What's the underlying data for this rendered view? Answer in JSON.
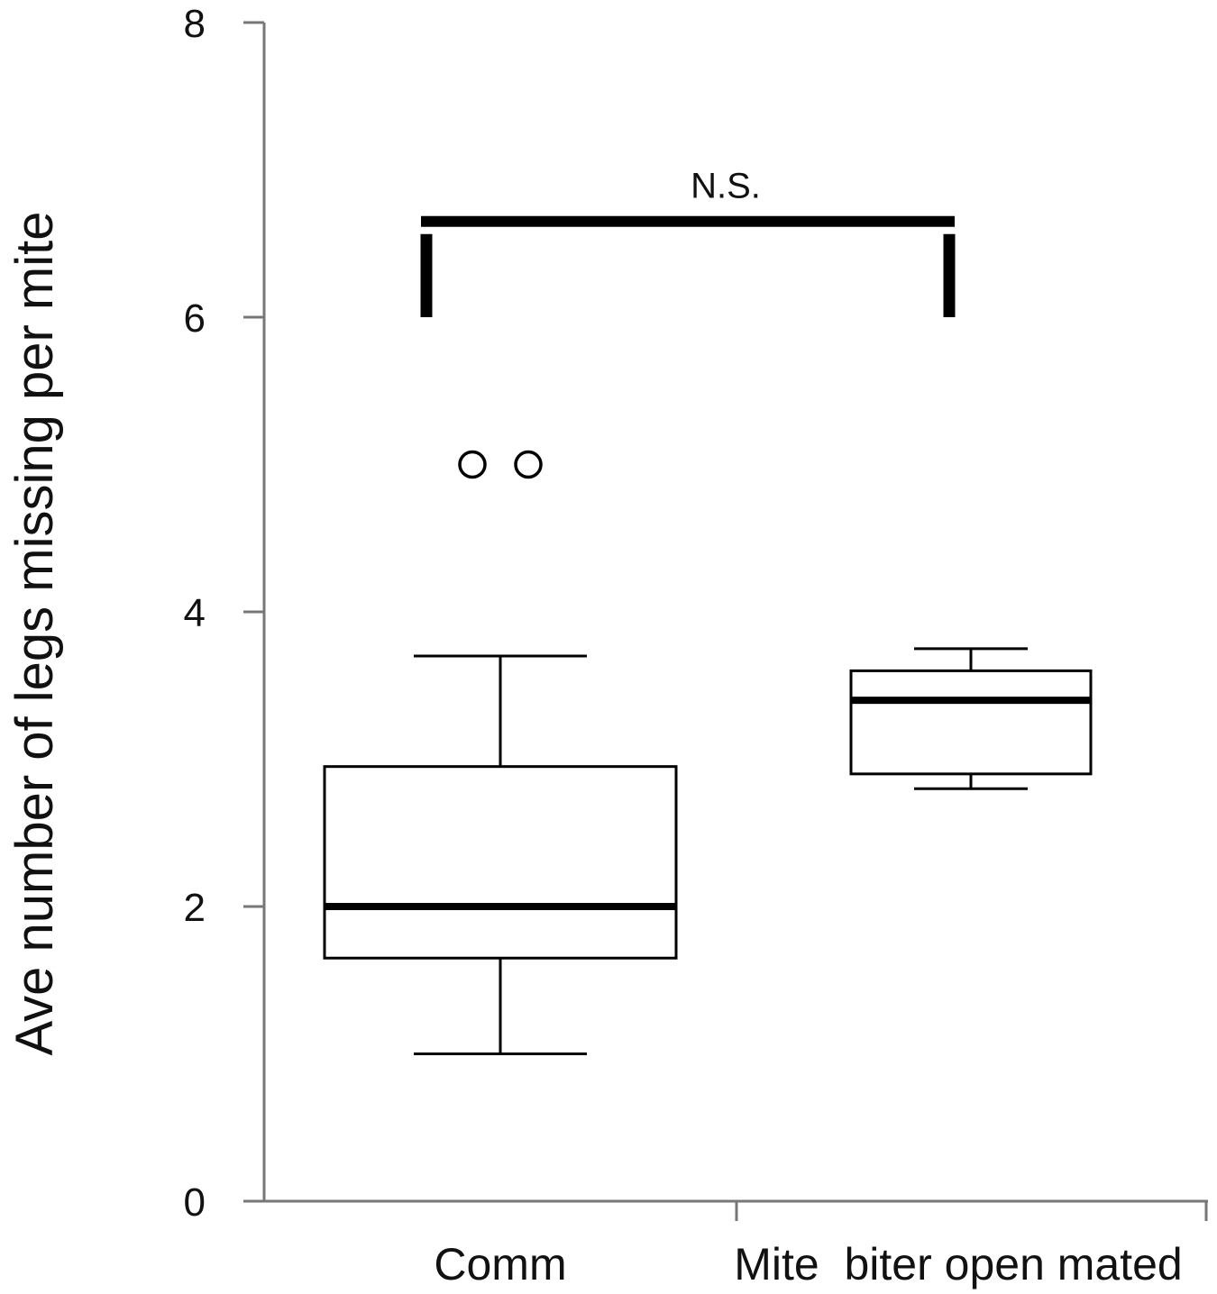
{
  "chart_data": {
    "type": "box",
    "title": "",
    "xlabel": "",
    "ylabel": "Ave number of legs missing per mite",
    "ylim": [
      0,
      8
    ],
    "yticks": [
      "0",
      "2",
      "4",
      "6",
      "8"
    ],
    "categories": [
      "Comm",
      "Mite  biter open mated"
    ],
    "boxes": [
      {
        "name": "Comm",
        "whisker_low": 1.0,
        "q1": 1.65,
        "median": 2.0,
        "q3": 2.95,
        "whisker_high": 3.7,
        "outliers": [
          5.0,
          5.0
        ]
      },
      {
        "name": "Mite  biter open mated",
        "whisker_low": 2.8,
        "q1": 2.9,
        "median": 3.4,
        "q3": 3.6,
        "whisker_high": 3.75,
        "outliers": []
      }
    ],
    "annotation": {
      "text": "N.S.",
      "between": [
        0,
        1
      ],
      "y": 6.65,
      "drop_to": 6.0
    },
    "grid": false,
    "legend": "none"
  }
}
